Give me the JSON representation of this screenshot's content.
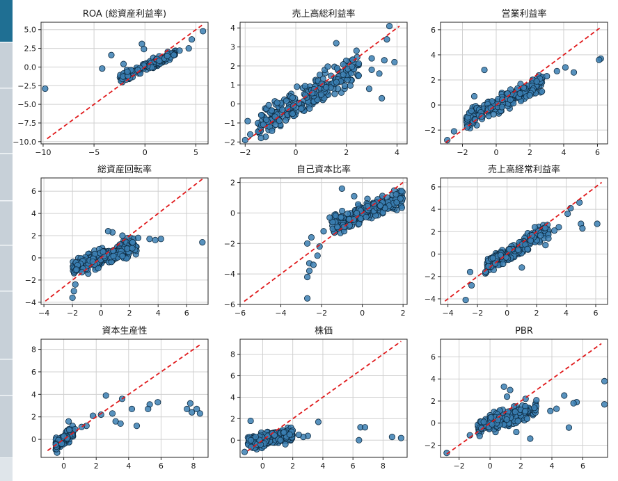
{
  "sidebar": {
    "tabs": 7,
    "active_index": 0
  },
  "colors": {
    "point_fill": "#3b7fb3",
    "point_stroke": "#0d2a40",
    "identity_line": "#e0191b",
    "grid": "#d0d0d0"
  },
  "chart_data": [
    {
      "type": "scatter",
      "title": "ROA (総資産利益率)",
      "xlim": [
        -10.2,
        6.2
      ],
      "ylim": [
        -10.3,
        6.0
      ],
      "xticks": [
        -10,
        -5,
        0,
        5
      ],
      "yticks": [
        5.0,
        2.5,
        0.0,
        -2.5,
        -5.0,
        -7.5,
        -10.0
      ],
      "xticklabels": [
        "−10",
        "−5",
        "0",
        "5"
      ],
      "yticklabels": [
        "5.0",
        "2.5",
        "0.0",
        "−2.5",
        "−5.0",
        "−7.5",
        "−10.0"
      ],
      "line": [
        [
          -9.6,
          -9.6
        ],
        [
          5.6,
          5.6
        ]
      ],
      "cluster": {
        "xmin": -2.5,
        "xmax": 3.0,
        "slope": 0.6,
        "noise": 0.45,
        "n": 150
      },
      "extra": [
        [
          -9.8,
          -2.9
        ],
        [
          5.7,
          4.8
        ],
        [
          4.6,
          3.7
        ],
        [
          -4.2,
          -0.2
        ],
        [
          -3.3,
          1.6
        ],
        [
          -0.3,
          3.1
        ],
        [
          4.3,
          2.5
        ],
        [
          3.4,
          2.2
        ],
        [
          -2.1,
          0.4
        ],
        [
          -0.1,
          2.4
        ]
      ]
    },
    {
      "type": "scatter",
      "title": "売上高総利益率",
      "xlim": [
        -2.2,
        4.4
      ],
      "ylim": [
        -2.1,
        4.3
      ],
      "xticks": [
        -2,
        0,
        2,
        4
      ],
      "yticks": [
        4,
        3,
        2,
        1,
        0,
        -1,
        -2
      ],
      "xticklabels": [
        "−2",
        "0",
        "2",
        "4"
      ],
      "yticklabels": [
        "4",
        "3",
        "2",
        "1",
        "0",
        "−1",
        "−2"
      ],
      "line": [
        [
          -1.9,
          -1.9
        ],
        [
          4.1,
          4.1
        ]
      ],
      "cluster": {
        "xmin": -1.5,
        "xmax": 2.5,
        "slope": 0.8,
        "noise": 0.55,
        "n": 240
      },
      "extra": [
        [
          3.7,
          4.1
        ],
        [
          3.6,
          3.4
        ],
        [
          3.0,
          2.4
        ],
        [
          3.5,
          2.3
        ],
        [
          3.9,
          2.2
        ],
        [
          3.3,
          1.6
        ],
        [
          3.0,
          1.8
        ],
        [
          2.4,
          2.8
        ],
        [
          -2.0,
          -1.9
        ],
        [
          -1.8,
          -1.6
        ],
        [
          -1.9,
          -0.9
        ],
        [
          1.6,
          3.2
        ],
        [
          3.4,
          0.3
        ],
        [
          2.9,
          0.8
        ]
      ]
    },
    {
      "type": "scatter",
      "title": "営業利益率",
      "xlim": [
        -3.3,
        6.6
      ],
      "ylim": [
        -3.1,
        6.6
      ],
      "xticks": [
        -2,
        0,
        2,
        4,
        6
      ],
      "yticks": [
        6,
        4,
        2,
        0,
        -2
      ],
      "xticklabels": [
        "−2",
        "0",
        "2",
        "4",
        "6"
      ],
      "yticklabels": [
        "6",
        "4",
        "2",
        "0",
        "−2"
      ],
      "line": [
        [
          -3.0,
          -3.0
        ],
        [
          6.2,
          6.2
        ]
      ],
      "cluster": {
        "xmin": -1.8,
        "xmax": 2.8,
        "slope": 0.65,
        "noise": 0.5,
        "n": 220
      },
      "extra": [
        [
          6.2,
          3.7
        ],
        [
          6.1,
          3.6
        ],
        [
          4.1,
          3.0
        ],
        [
          4.6,
          2.6
        ],
        [
          3.6,
          2.7
        ],
        [
          -2.9,
          -2.8
        ],
        [
          -2.5,
          -2.1
        ],
        [
          -1.3,
          0.7
        ],
        [
          -0.7,
          2.8
        ],
        [
          3.0,
          2.3
        ]
      ]
    },
    {
      "type": "scatter",
      "title": "総資産回転率",
      "xlim": [
        -4.2,
        7.5
      ],
      "ylim": [
        -4.2,
        7.2
      ],
      "xticks": [
        -4,
        -2,
        0,
        2,
        4,
        6
      ],
      "yticks": [
        6,
        4,
        2,
        0,
        -2,
        -4
      ],
      "xticklabels": [
        "−4",
        "−2",
        "0",
        "2",
        "4",
        "6"
      ],
      "yticklabels": [
        "6",
        "4",
        "2",
        "0",
        "−2",
        "−4"
      ],
      "line": [
        [
          -3.9,
          -3.9
        ],
        [
          7.1,
          7.1
        ]
      ],
      "cluster": {
        "xmin": -2.0,
        "xmax": 2.5,
        "slope": 0.45,
        "noise": 0.55,
        "n": 230
      },
      "extra": [
        [
          7.1,
          1.4
        ],
        [
          3.8,
          1.6
        ],
        [
          4.2,
          1.7
        ],
        [
          3.4,
          1.7
        ],
        [
          2.6,
          1.8
        ],
        [
          0.8,
          2.3
        ],
        [
          0.5,
          2.4
        ],
        [
          -2.0,
          -3.6
        ],
        [
          -1.9,
          -3.0
        ],
        [
          -1.8,
          -2.4
        ],
        [
          1.5,
          2.0
        ]
      ]
    },
    {
      "type": "scatter",
      "title": "自己資本比率",
      "xlim": [
        -6.0,
        2.2
      ],
      "ylim": [
        -6.0,
        2.3
      ],
      "xticks": [
        -6,
        -4,
        -2,
        0,
        2
      ],
      "yticks": [
        2,
        0,
        -2,
        -4,
        -6
      ],
      "xticklabels": [
        "−6",
        "−4",
        "−2",
        "0",
        "2"
      ],
      "yticklabels": [
        "2",
        "0",
        "−2",
        "−4",
        "−6"
      ],
      "line": [
        [
          -5.8,
          -5.8
        ],
        [
          2.0,
          2.0
        ]
      ],
      "cluster": {
        "xmin": -1.5,
        "xmax": 2.0,
        "slope": 0.55,
        "noise": 0.45,
        "n": 240
      },
      "extra": [
        [
          -2.7,
          -5.6
        ],
        [
          -2.7,
          -4.2
        ],
        [
          -2.6,
          -3.8
        ],
        [
          -2.6,
          -3.3
        ],
        [
          -2.4,
          -3.4
        ],
        [
          -2.2,
          -2.8
        ],
        [
          -2.7,
          -2.0
        ],
        [
          -2.5,
          -1.6
        ],
        [
          -1.9,
          -1.2
        ],
        [
          -2.1,
          -2.2
        ],
        [
          -1.6,
          -0.3
        ],
        [
          -1.0,
          1.6
        ],
        [
          -0.4,
          1.1
        ]
      ]
    },
    {
      "type": "scatter",
      "title": "売上高経常利益率",
      "xlim": [
        -4.5,
        6.8
      ],
      "ylim": [
        -4.5,
        6.8
      ],
      "xticks": [
        -4,
        -2,
        0,
        2,
        4,
        6
      ],
      "yticks": [
        6,
        4,
        2,
        0,
        -2,
        -4
      ],
      "xticklabels": [
        "−4",
        "−2",
        "0",
        "2",
        "4",
        "6"
      ],
      "yticklabels": [
        "6",
        "4",
        "2",
        "0",
        "−2",
        "−4"
      ],
      "line": [
        [
          -4.2,
          -4.2
        ],
        [
          6.4,
          6.4
        ]
      ],
      "cluster": {
        "xmin": -1.5,
        "xmax": 2.8,
        "slope": 0.8,
        "noise": 0.5,
        "n": 200
      },
      "extra": [
        [
          -2.8,
          -4.1
        ],
        [
          -2.4,
          -2.8
        ],
        [
          -2.5,
          -1.6
        ],
        [
          4.3,
          4.1
        ],
        [
          4.9,
          4.6
        ],
        [
          6.1,
          2.7
        ],
        [
          5.0,
          2.7
        ],
        [
          5.1,
          2.3
        ],
        [
          3.5,
          2.4
        ],
        [
          3.2,
          2.1
        ],
        [
          2.6,
          0.8
        ],
        [
          1.6,
          1.2
        ],
        [
          2.8,
          1.4
        ],
        [
          1.0,
          -1.2
        ],
        [
          4.1,
          3.6
        ]
      ]
    },
    {
      "type": "scatter",
      "title": "資本生産性",
      "xlim": [
        -1.4,
        8.9
      ],
      "ylim": [
        -1.6,
        8.9
      ],
      "xticks": [
        0,
        2,
        4,
        6,
        8
      ],
      "yticks": [
        8,
        6,
        4,
        2,
        0
      ],
      "xticklabels": [
        "0",
        "2",
        "4",
        "6",
        "8"
      ],
      "yticklabels": [
        "8",
        "6",
        "4",
        "2",
        "0"
      ],
      "line": [
        [
          -1.0,
          -1.0
        ],
        [
          8.5,
          8.5
        ]
      ],
      "cluster": {
        "xmin": -0.5,
        "xmax": 0.6,
        "slope": 1.2,
        "noise": 0.35,
        "n": 160
      },
      "extra": [
        [
          2.6,
          3.9
        ],
        [
          3.6,
          3.6
        ],
        [
          3.0,
          2.3
        ],
        [
          3.2,
          1.6
        ],
        [
          3.5,
          1.4
        ],
        [
          4.5,
          1.2
        ],
        [
          4.2,
          2.7
        ],
        [
          5.3,
          3.1
        ],
        [
          5.8,
          3.3
        ],
        [
          5.2,
          2.7
        ],
        [
          7.8,
          3.2
        ],
        [
          7.6,
          2.7
        ],
        [
          8.2,
          2.7
        ],
        [
          8.4,
          2.3
        ],
        [
          7.9,
          2.4
        ],
        [
          1.4,
          1.2
        ],
        [
          1.8,
          2.1
        ],
        [
          2.3,
          2.2
        ],
        [
          1.1,
          1.1
        ],
        [
          0.7,
          0.9
        ],
        [
          0.3,
          1.6
        ]
      ]
    },
    {
      "type": "scatter",
      "title": "株価",
      "xlim": [
        -1.5,
        9.6
      ],
      "ylim": [
        -1.6,
        9.4
      ],
      "xticks": [
        0,
        2,
        4,
        6,
        8
      ],
      "yticks": [
        8,
        6,
        4,
        2,
        0
      ],
      "xticklabels": [
        "0",
        "2",
        "4",
        "6",
        "8"
      ],
      "yticklabels": [
        "8",
        "6",
        "4",
        "2",
        "0"
      ],
      "line": [
        [
          -1.0,
          -1.0
        ],
        [
          9.2,
          9.2
        ]
      ],
      "cluster": {
        "xmin": -1.0,
        "xmax": 2.0,
        "slope": 0.25,
        "noise": 0.45,
        "n": 230
      },
      "extra": [
        [
          9.2,
          0.2
        ],
        [
          8.6,
          0.3
        ],
        [
          6.5,
          1.2
        ],
        [
          6.8,
          1.2
        ],
        [
          6.4,
          0.0
        ],
        [
          3.7,
          1.7
        ],
        [
          3.0,
          0.4
        ],
        [
          2.7,
          0.3
        ],
        [
          2.4,
          0.5
        ],
        [
          -1.2,
          -1.1
        ],
        [
          -0.8,
          1.8
        ]
      ]
    },
    {
      "type": "scatter",
      "title": "PBR",
      "xlim": [
        -3.2,
        7.6
      ],
      "ylim": [
        -3.1,
        7.6
      ],
      "xticks": [
        -2,
        0,
        2,
        4,
        6
      ],
      "yticks": [
        6,
        4,
        2,
        0,
        -2
      ],
      "xticklabels": [
        "−2",
        "0",
        "2",
        "4",
        "6"
      ],
      "yticklabels": [
        "6",
        "4",
        "2",
        "0",
        "−2"
      ],
      "line": [
        [
          -2.8,
          -2.8
        ],
        [
          7.2,
          7.2
        ]
      ],
      "cluster": {
        "xmin": -0.8,
        "xmax": 3.0,
        "slope": 0.45,
        "noise": 0.55,
        "n": 220
      },
      "extra": [
        [
          7.4,
          3.8
        ],
        [
          7.4,
          1.7
        ],
        [
          5.6,
          1.9
        ],
        [
          5.4,
          1.8
        ],
        [
          5.1,
          -0.4
        ],
        [
          4.8,
          2.5
        ],
        [
          1.3,
          3.0
        ],
        [
          0.9,
          3.3
        ],
        [
          1.1,
          2.4
        ],
        [
          2.3,
          2.2
        ],
        [
          -2.8,
          -2.7
        ],
        [
          -1.3,
          -1.1
        ],
        [
          3.9,
          1.1
        ],
        [
          4.3,
          1.3
        ],
        [
          2.6,
          -1.4
        ],
        [
          1.7,
          -0.8
        ]
      ]
    }
  ]
}
